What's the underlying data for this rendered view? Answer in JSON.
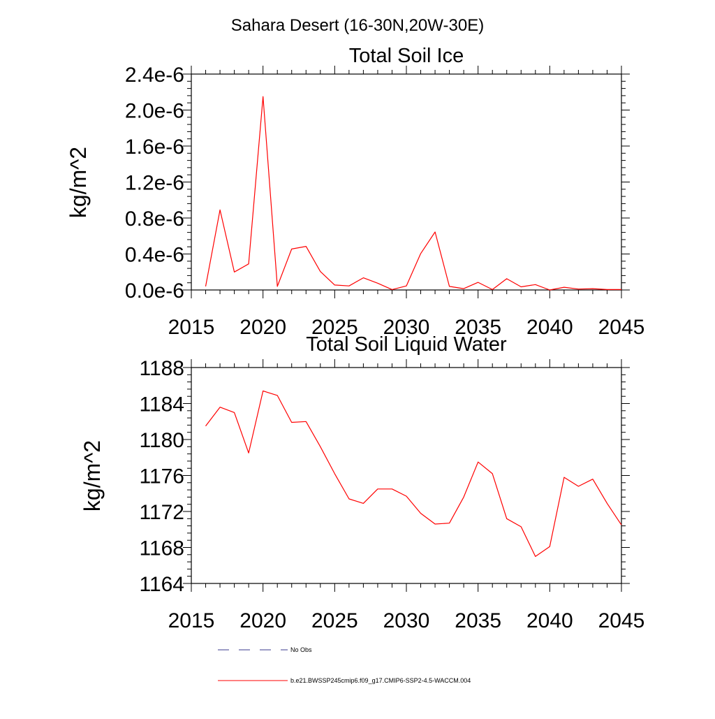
{
  "figure": {
    "title": "Sahara Desert (16-30N,20W-30E)"
  },
  "chart_data": [
    {
      "type": "line",
      "title": "Total Soil Ice",
      "xlabel": "",
      "ylabel": "kg/m^2",
      "xlim": [
        2015,
        2045
      ],
      "ylim": [
        0,
        2.4e-06
      ],
      "xticks": [
        2015,
        2020,
        2025,
        2030,
        2035,
        2040,
        2045
      ],
      "xtick_labels": [
        "2015",
        "2020",
        "2025",
        "2030",
        "2035",
        "2040",
        "2045"
      ],
      "yticks": [
        0,
        4e-07,
        8e-07,
        1.2e-06,
        1.6e-06,
        2e-06,
        2.4e-06
      ],
      "ytick_labels": [
        "0.0e-6",
        "0.4e-6",
        "0.8e-6",
        "1.2e-6",
        "1.6e-6",
        "2.0e-6",
        "2.4e-6"
      ],
      "grid": false,
      "series": [
        {
          "name": "b.e21.BWSSP245cmip6.f09_g17.CMIP6-SSP2-4.5-WACCM.004",
          "color": "#ff0000",
          "x": [
            2016,
            2017,
            2018,
            2019,
            2020,
            2021,
            2022,
            2023,
            2024,
            2025,
            2026,
            2027,
            2028,
            2029,
            2030,
            2031,
            2032,
            2033,
            2034,
            2035,
            2036,
            2037,
            2038,
            2039,
            2040,
            2041,
            2042,
            2043,
            2044,
            2045
          ],
          "y": [
            4e-08,
            8.9e-07,
            2e-07,
            2.9e-07,
            2.15e-06,
            4e-08,
            4.55e-07,
            4.85e-07,
            2.05e-07,
            5.5e-08,
            4.5e-08,
            1.35e-07,
            7.5e-08,
            5e-09,
            4.5e-08,
            4.05e-07,
            6.45e-07,
            4e-08,
            1.5e-08,
            8.5e-08,
            5e-09,
            1.25e-07,
            3.5e-08,
            6e-08,
            0,
            3e-08,
            1e-08,
            1.5e-08,
            5e-09,
            5e-09
          ]
        }
      ]
    },
    {
      "type": "line",
      "title": "Total Soil Liquid Water",
      "xlabel": "",
      "ylabel": "kg/m^2",
      "xlim": [
        2015,
        2045
      ],
      "ylim": [
        1164,
        1188
      ],
      "xticks": [
        2015,
        2020,
        2025,
        2030,
        2035,
        2040,
        2045
      ],
      "xtick_labels": [
        "2015",
        "2020",
        "2025",
        "2030",
        "2035",
        "2040",
        "2045"
      ],
      "yticks": [
        1164,
        1168,
        1172,
        1176,
        1180,
        1184,
        1188
      ],
      "ytick_labels": [
        "1164",
        "1168",
        "1172",
        "1176",
        "1180",
        "1184",
        "1188"
      ],
      "grid": false,
      "series": [
        {
          "name": "b.e21.BWSSP245cmip6.f09_g17.CMIP6-SSP2-4.5-WACCM.004",
          "color": "#ff0000",
          "x": [
            2016,
            2017,
            2018,
            2019,
            2020,
            2021,
            2022,
            2023,
            2024,
            2025,
            2026,
            2027,
            2028,
            2029,
            2030,
            2031,
            2032,
            2033,
            2034,
            2035,
            2036,
            2037,
            2038,
            2039,
            2040,
            2041,
            2042,
            2043,
            2044,
            2045
          ],
          "y": [
            1181.5,
            1183.6,
            1183.0,
            1178.5,
            1185.4,
            1184.9,
            1181.9,
            1182.0,
            1179.2,
            1176.2,
            1173.4,
            1172.9,
            1174.5,
            1174.5,
            1173.7,
            1171.8,
            1170.6,
            1170.7,
            1173.6,
            1177.5,
            1176.2,
            1171.2,
            1170.3,
            1167.0,
            1168.1,
            1175.8,
            1174.8,
            1175.6,
            1172.9,
            1170.5
          ]
        }
      ]
    }
  ],
  "legend": {
    "placement": "bottom",
    "entries": [
      {
        "label": "No Obs",
        "color": "#3a3a8c",
        "style": "dashed"
      },
      {
        "label": "b.e21.BWSSP245cmip6.f09_g17.CMIP6-SSP2-4.5-WACCM.004",
        "color": "#ff0000",
        "style": "solid"
      }
    ]
  }
}
